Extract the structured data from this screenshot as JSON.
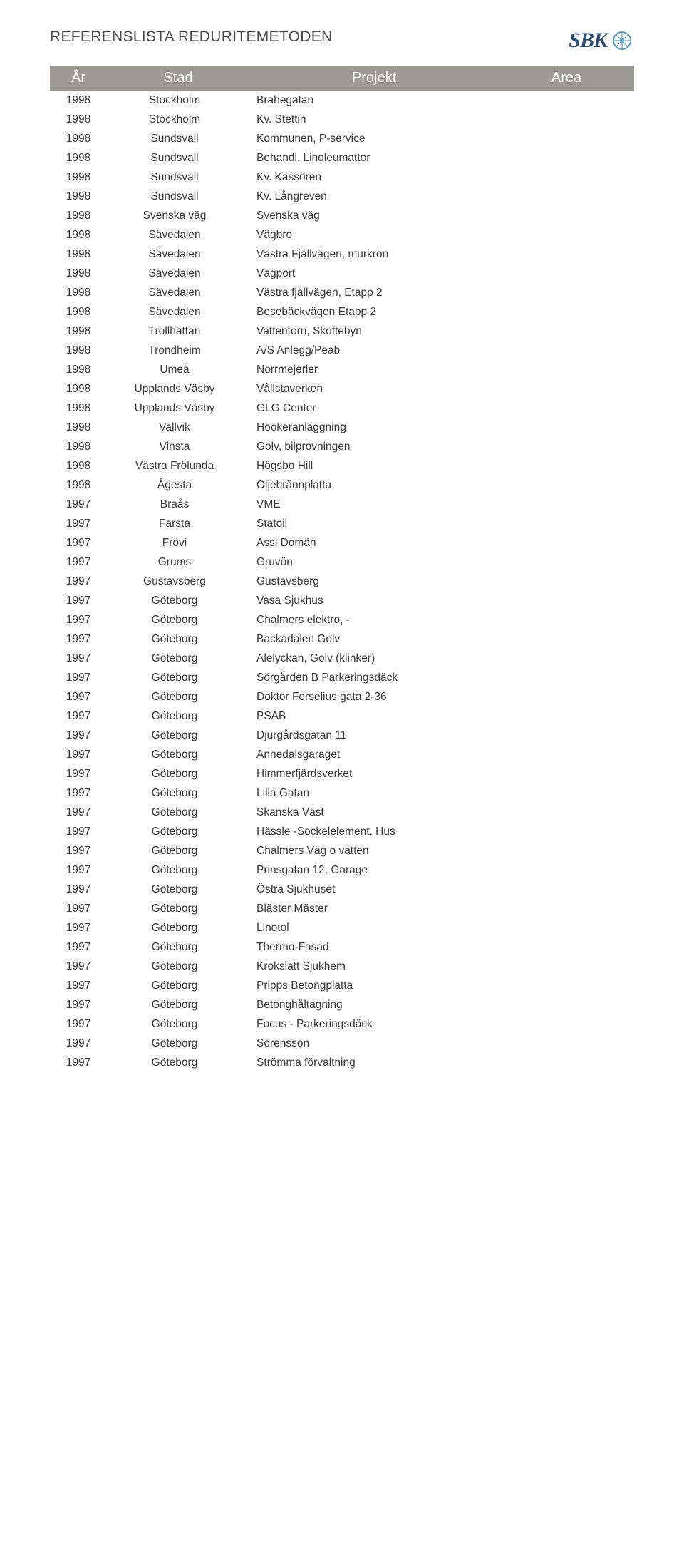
{
  "doc_title": "REFERENSLISTA REDURITEMETODEN",
  "logo": {
    "text": "SBK"
  },
  "table": {
    "headers": {
      "year": "År",
      "city": "Stad",
      "project": "Projekt",
      "area": "Area"
    },
    "header_bg": "#9c9a95",
    "header_fg": "#ffffff",
    "row_fg": "#3a3a3a",
    "rows": [
      {
        "year": "1998",
        "city": "Stockholm",
        "project": "Brahegatan"
      },
      {
        "year": "1998",
        "city": "Stockholm",
        "project": "Kv. Stettin"
      },
      {
        "year": "1998",
        "city": "Sundsvall",
        "project": "Kommunen, P-service"
      },
      {
        "year": "1998",
        "city": "Sundsvall",
        "project": "Behandl. Linoleumattor"
      },
      {
        "year": "1998",
        "city": "Sundsvall",
        "project": "Kv. Kassören"
      },
      {
        "year": "1998",
        "city": "Sundsvall",
        "project": "Kv. Långreven"
      },
      {
        "year": "1998",
        "city": "Svenska väg",
        "project": "Svenska väg"
      },
      {
        "year": "1998",
        "city": "Sävedalen",
        "project": "Vägbro"
      },
      {
        "year": "1998",
        "city": "Sävedalen",
        "project": "Västra Fjällvägen, murkrön"
      },
      {
        "year": "1998",
        "city": "Sävedalen",
        "project": "Vägport"
      },
      {
        "year": "1998",
        "city": "Sävedalen",
        "project": "Västra fjällvägen, Etapp 2"
      },
      {
        "year": "1998",
        "city": "Sävedalen",
        "project": "Besebäckvägen Etapp 2"
      },
      {
        "year": "1998",
        "city": "Trollhättan",
        "project": "Vattentorn, Skoftebyn"
      },
      {
        "year": "1998",
        "city": "Trondheim",
        "project": "A/S Anlegg/Peab"
      },
      {
        "year": "1998",
        "city": "Umeå",
        "project": "Norrmejerier"
      },
      {
        "year": "1998",
        "city": "Upplands Väsby",
        "project": "Vållstaverken"
      },
      {
        "year": "1998",
        "city": "Upplands Väsby",
        "project": "GLG Center"
      },
      {
        "year": "1998",
        "city": "Vallvik",
        "project": "Hookeranläggning"
      },
      {
        "year": "1998",
        "city": "Vinsta",
        "project": "Golv, bilprovningen"
      },
      {
        "year": "1998",
        "city": "Västra Frölunda",
        "project": "Högsbo Hill"
      },
      {
        "year": "1998",
        "city": "Ågesta",
        "project": "Oljebrännplatta"
      },
      {
        "year": "1997",
        "city": "Braås",
        "project": "VME"
      },
      {
        "year": "1997",
        "city": "Farsta",
        "project": "Statoil"
      },
      {
        "year": "1997",
        "city": "Frövi",
        "project": "Assi Domän"
      },
      {
        "year": "1997",
        "city": "Grums",
        "project": "Gruvön"
      },
      {
        "year": "1997",
        "city": "Gustavsberg",
        "project": "Gustavsberg"
      },
      {
        "year": "1997",
        "city": "Göteborg",
        "project": "Vasa Sjukhus"
      },
      {
        "year": "1997",
        "city": "Göteborg",
        "project": "Chalmers elektro, -"
      },
      {
        "year": "1997",
        "city": "Göteborg",
        "project": "Backadalen Golv"
      },
      {
        "year": "1997",
        "city": "Göteborg",
        "project": "Alelyckan, Golv (klinker)"
      },
      {
        "year": "1997",
        "city": "Göteborg",
        "project": "Sörgården B Parkeringsdäck"
      },
      {
        "year": "1997",
        "city": "Göteborg",
        "project": "Doktor Forselius gata 2-36"
      },
      {
        "year": "1997",
        "city": "Göteborg",
        "project": "PSAB"
      },
      {
        "year": "1997",
        "city": "Göteborg",
        "project": "Djurgårdsgatan 11"
      },
      {
        "year": "1997",
        "city": "Göteborg",
        "project": "Annedalsgaraget"
      },
      {
        "year": "1997",
        "city": "Göteborg",
        "project": "Himmerfjärdsverket"
      },
      {
        "year": "1997",
        "city": "Göteborg",
        "project": "Lilla Gatan"
      },
      {
        "year": "1997",
        "city": "Göteborg",
        "project": "Skanska Väst"
      },
      {
        "year": "1997",
        "city": "Göteborg",
        "project": "Hässle -Sockelelement, Hus"
      },
      {
        "year": "1997",
        "city": "Göteborg",
        "project": "Chalmers Väg o vatten"
      },
      {
        "year": "1997",
        "city": "Göteborg",
        "project": "Prinsgatan 12, Garage"
      },
      {
        "year": "1997",
        "city": "Göteborg",
        "project": "Östra Sjukhuset"
      },
      {
        "year": "1997",
        "city": "Göteborg",
        "project": "Bläster Mäster"
      },
      {
        "year": "1997",
        "city": "Göteborg",
        "project": "Linotol"
      },
      {
        "year": "1997",
        "city": "Göteborg",
        "project": "Thermo-Fasad"
      },
      {
        "year": "1997",
        "city": "Göteborg",
        "project": "Krokslätt Sjukhem"
      },
      {
        "year": "1997",
        "city": "Göteborg",
        "project": "Pripps Betongplatta"
      },
      {
        "year": "1997",
        "city": "Göteborg",
        "project": "Betonghåltagning"
      },
      {
        "year": "1997",
        "city": "Göteborg",
        "project": "Focus - Parkeringsdäck"
      },
      {
        "year": "1997",
        "city": "Göteborg",
        "project": "Sörensson"
      },
      {
        "year": "1997",
        "city": "Göteborg",
        "project": "Strömma förvaltning"
      }
    ]
  }
}
